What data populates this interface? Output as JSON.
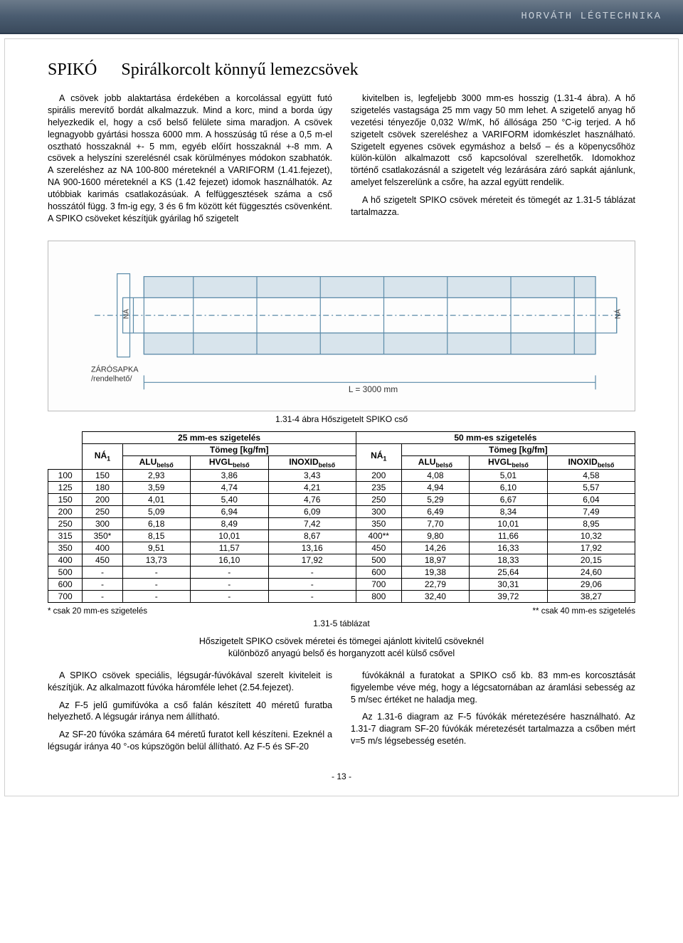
{
  "header": {
    "brand": "HORVÁTH LÉGTECHNIKA"
  },
  "title": {
    "spiko": "SPIKÓ",
    "rest": "Spirálkorcolt könnyű lemezcsövek"
  },
  "body": {
    "left_p1": "A csövek jobb alaktartása érdekében a korcolással együtt futó spirális merevítő bordát alkalmazzuk. Mind a korc, mind a borda úgy helyezkedik el, hogy a cső belső felülete sima maradjon. A csövek legnagyobb gyártási hossza 6000 mm. A hosszúság tű rése a 0,5 m-el osztható hosszaknál +- 5 mm, egyéb előírt hosszaknál +-8 mm. A csövek a helyszíni szerelésnél csak körülményes módokon szabhatók. A szereléshez az NA 100-800 méreteknél a VARIFORM (1.41.fejezet), NA 900-1600 méreteknél a KS (1.42 fejezet) idomok használhatók. Az utóbbiak karimás csatlakozásúak. A felfüggesztések száma a cső hosszától függ. 3 fm-ig egy, 3 és 6 fm között két függesztés csövenként. A SPIKO csöveket készítjük gyárilag hő szigetelt",
    "right_p1": "kivitelben is, legfeljebb 3000 mm-es hosszig (1.31-4 ábra). A hő szigetelés vastagsága 25 mm vagy 50 mm lehet. A szigetelő anyag hő vezetési tényezője 0,032 W/mK, hő állósága 250 °C-ig terjed. A hő szigetelt csövek szereléshez a VARIFORM idomkészlet használható. Szigetelt egyenes csövek egymáshoz a belső – és a köpenycsőhöz külön-külön alkalmazott cső kapcsolóval szerelhetők. Idomokhoz történő csatlakozásnál a szigetelt vég lezárására záró sapkát ajánlunk, amelyet felszerelünk a csőre, ha azzal együtt rendelik.",
    "right_p2": "A hő szigetelt SPIKO csövek méreteit és tömegét az 1.31-5 táblázat tartalmazza."
  },
  "diagram": {
    "caption": "1.31-4 ábra  Hőszigetelt SPIKO cső",
    "label_zarosapka": "ZÁRÓSAPKA",
    "label_rendelheto": "/rendelhető/",
    "label_na_left": "NÁ",
    "label_na_right": "NÁ",
    "label_length": "L = 3000 mm",
    "stroke": "#5a8aa8"
  },
  "table": {
    "group1": "25 mm-es szigetelés",
    "group2": "50 mm-es szigetelés",
    "na1": "NÁ",
    "na1_sub": "1",
    "tomeg": "Tömeg [kg/fm]",
    "col_alu": "ALU",
    "col_hvgl": "HVGL",
    "col_inoxid": "INOXID",
    "sub_belso": "belső",
    "rows": [
      [
        "100",
        "150",
        "2,93",
        "3,86",
        "3,43",
        "200",
        "4,08",
        "5,01",
        "4,58"
      ],
      [
        "125",
        "180",
        "3,59",
        "4,74",
        "4,21",
        "235",
        "4,94",
        "6,10",
        "5,57"
      ],
      [
        "150",
        "200",
        "4,01",
        "5,40",
        "4,76",
        "250",
        "5,29",
        "6,67",
        "6,04"
      ],
      [
        "200",
        "250",
        "5,09",
        "6,94",
        "6,09",
        "300",
        "6,49",
        "8,34",
        "7,49"
      ],
      [
        "250",
        "300",
        "6,18",
        "8,49",
        "7,42",
        "350",
        "7,70",
        "10,01",
        "8,95"
      ],
      [
        "315",
        "350*",
        "8,15",
        "10,01",
        "8,67",
        "400**",
        "9,80",
        "11,66",
        "10,32"
      ],
      [
        "350",
        "400",
        "9,51",
        "11,57",
        "13,16",
        "450",
        "14,26",
        "16,33",
        "17,92"
      ],
      [
        "400",
        "450",
        "13,73",
        "16,10",
        "17,92",
        "500",
        "18,97",
        "18,33",
        "20,15"
      ],
      [
        "500",
        "-",
        "-",
        "-",
        "-",
        "600",
        "19,38",
        "25,64",
        "24,60"
      ],
      [
        "600",
        "-",
        "-",
        "-",
        "-",
        "700",
        "22,79",
        "30,31",
        "29,06"
      ],
      [
        "700",
        "-",
        "-",
        "-",
        "-",
        "800",
        "32,40",
        "39,72",
        "38,27"
      ]
    ],
    "footnote_left": "* csak 20 mm-es szigetelés",
    "footnote_right": "** csak 40 mm-es szigetelés",
    "caption": "1.31-5 táblázat",
    "subtitle1": "Hőszigetelt SPIKO csövek méretei és tömegei ajánlott kivitelű csöveknél",
    "subtitle2": "különböző anyagú belső és horganyzott acél külső csővel"
  },
  "body2": {
    "left_p1": "A SPIKO csövek speciális, légsugár-fúvókával szerelt kiviteleit is készítjük. Az alkalmazott fúvóka háromféle lehet (2.54.fejezet).",
    "left_p2": "Az F-5 jelű gumifúvóka a cső falán készített 40 méretű furatba helyezhető. A légsugár iránya nem állítható.",
    "left_p3": "Az SF-20 fúvóka számára 64 méretű furatot kell készíteni. Ezeknél a légsugár iránya 40 °-os kúpszögön belül állítható. Az F-5 és SF-20",
    "right_p1": "fúvókáknál a furatokat a SPIKO cső kb. 83 mm-es korcosztását figyelembe véve még, hogy a légcsatornában az áramlási sebesség az 5 m/sec értéket ne haladja meg.",
    "right_p2": "Az 1.31-6 diagram az F-5 fúvókák méretezésére használható. Az 1.31-7 diagram SF-20 fúvókák méretezését tartalmazza a csőben mért v=5 m/s légsebesség esetén."
  },
  "page_number": "- 13 -"
}
